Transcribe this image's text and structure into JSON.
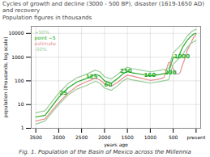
{
  "chart_data": {
    "type": "line",
    "title": "Cycles of growth and decline (3000 - 500 BP), disaster (1619-1650 AD) and recovery",
    "subtitle": "Population figures in thousands",
    "caption": "Fig. 1. Population of the Basin of Mexico across the Millennia",
    "xlabel": "years ago",
    "ylabel": "population (thousands, log scale)",
    "log": "y",
    "grid": true,
    "legend": "upper left",
    "xlim": [
      3600,
      -100
    ],
    "ylim": [
      1,
      20000
    ],
    "xticks": [
      3500,
      3000,
      2500,
      2000,
      1500,
      1000,
      500,
      {
        "value": 0,
        "label": "present"
      }
    ],
    "yticks": [
      1,
      10,
      100,
      1000,
      10000
    ],
    "series": [
      {
        "name": "+50%",
        "color": "#99cc99",
        "x": [
          3500,
          3300,
          3000,
          2800,
          2600,
          2400,
          2200,
          2100,
          2000,
          1850,
          1700,
          1600,
          1500,
          1400,
          1200,
          1000,
          800,
          600,
          500,
          300,
          200,
          100,
          0
        ],
        "values": [
          4.5,
          5.5,
          30,
          75,
          135,
          188,
          285,
          240,
          150,
          120,
          195,
          300,
          375,
          330,
          285,
          240,
          278,
          330,
          1500,
          3750,
          7500,
          12000,
          15000
        ]
      },
      {
        "name": "point ~5",
        "color": "#22aa22",
        "x": [
          3500,
          3300,
          3000,
          2800,
          2600,
          2400,
          2200,
          2100,
          2000,
          1850,
          1700,
          1600,
          1500,
          1400,
          1200,
          1000,
          800,
          600,
          500,
          400,
          300,
          200,
          100,
          50,
          0
        ],
        "values": [
          3,
          3.5,
          20,
          50,
          90,
          125,
          190,
          160,
          100,
          80,
          130,
          200,
          250,
          220,
          190,
          160,
          185,
          220,
          1000,
          900,
          2500,
          5000,
          8000,
          9500,
          10000
        ]
      },
      {
        "name": "estimate",
        "color": "#e89090",
        "x": [
          3500,
          3300,
          3000,
          2800,
          2600,
          2400,
          2200,
          2100,
          2000,
          1850,
          1700,
          1600,
          1500,
          1400,
          1200,
          1000,
          800,
          700,
          600,
          550,
          520,
          490,
          450,
          400,
          350,
          300,
          250,
          200,
          100,
          50,
          0
        ],
        "values": [
          2,
          2.5,
          12,
          30,
          60,
          90,
          130,
          110,
          75,
          60,
          90,
          130,
          175,
          160,
          130,
          105,
          120,
          140,
          600,
          580,
          400,
          300,
          210,
          190,
          220,
          450,
          800,
          1800,
          4500,
          7000,
          9000
        ]
      },
      {
        "name": "-50%",
        "color": "#99cc99",
        "x": [
          3500,
          3300,
          3000,
          2800,
          2600,
          2400,
          2200,
          2100,
          2000,
          1850,
          1700,
          1600,
          1500,
          1400,
          1200,
          1000,
          800,
          600,
          500,
          300,
          200,
          100,
          0
        ],
        "values": [
          1.5,
          2,
          10,
          25,
          45,
          63,
          95,
          80,
          50,
          40,
          65,
          100,
          125,
          110,
          95,
          80,
          93,
          110,
          500,
          1250,
          2500,
          4000,
          5000
        ]
      }
    ],
    "annotations": [
      {
        "text": "25",
        "x": 2900,
        "y": 32,
        "color": "#22aa22"
      },
      {
        "text": "125",
        "x": 2280,
        "y": 148,
        "color": "#22aa22"
      },
      {
        "text": "60",
        "x": 1920,
        "y": 68,
        "color": "#22aa22"
      },
      {
        "text": "250",
        "x": 1530,
        "y": 270,
        "color": "#22aa22"
      },
      {
        "text": "160",
        "x": 1010,
        "y": 170,
        "color": "#22aa22"
      },
      {
        "text": "200",
        "x": 560,
        "y": 215,
        "color": "#22aa22"
      },
      {
        "text": "1000",
        "x": 310,
        "y": 1050,
        "color": "#22aa22"
      }
    ]
  }
}
